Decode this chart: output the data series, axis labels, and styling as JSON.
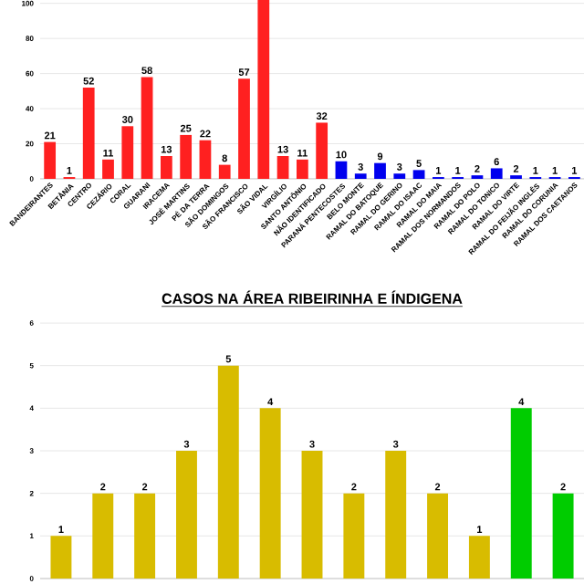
{
  "chart_data": [
    {
      "type": "bar",
      "categories": [
        "BANDEIRANTES",
        "BETÂNIA",
        "CENTRO",
        "CEZÁRIO",
        "CORAL",
        "GUARANI",
        "IRACEMA",
        "JOSÉ MARTINS",
        "PÉ DA TERRA",
        "SÃO DOMINGOS",
        "SÃO FRANCISCO",
        "SÃO VIDAL",
        "VIRGÍLIO",
        "SANTO ANTÔNIO",
        "NÃO IDENTIFICADO",
        "PARANÁ PENTECOSTES",
        "BELO MONTE",
        "RAMAL DO BATOQUE",
        "RAMAL DO GERINO",
        "RAMAL DO ISAAC",
        "RAMAL DO MAIA",
        "RAMAL DOS NORMANDOS",
        "RAMAL DO POLO",
        "RAMAL DO TONICO",
        "RAMAL DO VIRTE",
        "RAMAL DO FEIJÃO INGLÊS",
        "RAMAL DO CORUNIA",
        "RAMAL DOS CAETANOS"
      ],
      "values": [
        21,
        1,
        52,
        11,
        30,
        58,
        13,
        25,
        22,
        8,
        57,
        104,
        13,
        11,
        32,
        10,
        3,
        9,
        3,
        5,
        1,
        1,
        2,
        6,
        2,
        1,
        1,
        1
      ],
      "value_labels": [
        "21",
        "1",
        "52",
        "11",
        "30",
        "58",
        "13",
        "25",
        "22",
        "8",
        "57",
        null,
        "13",
        "11",
        "32",
        "10",
        "3",
        "9",
        "3",
        "5",
        "1",
        "1",
        "2",
        "6",
        "2",
        "1",
        "1",
        "1"
      ],
      "colors": [
        "#ff2020",
        "#ff2020",
        "#ff2020",
        "#ff2020",
        "#ff2020",
        "#ff2020",
        "#ff2020",
        "#ff2020",
        "#ff2020",
        "#ff2020",
        "#ff2020",
        "#ff2020",
        "#ff2020",
        "#ff2020",
        "#ff2020",
        "#0000ee",
        "#0000ee",
        "#0000ee",
        "#0000ee",
        "#0000ee",
        "#0000ee",
        "#0000ee",
        "#0000ee",
        "#0000ee",
        "#0000ee",
        "#0000ee",
        "#0000ee",
        "#0000ee"
      ],
      "ylim": [
        0,
        104
      ],
      "yticks": [
        0,
        20,
        40,
        60,
        80,
        100
      ],
      "grid": "y"
    },
    {
      "type": "bar",
      "title": "CASOS NA ÁREA RIBEIRINHA E ÍNDIGENA",
      "categories": [
        null,
        null,
        null,
        null,
        null,
        null,
        null,
        null,
        null,
        null,
        null,
        null,
        null
      ],
      "values": [
        1,
        2,
        2,
        3,
        5,
        4,
        3,
        2,
        3,
        2,
        1,
        4,
        2
      ],
      "colors": [
        "#d8bc00",
        "#d8bc00",
        "#d8bc00",
        "#d8bc00",
        "#d8bc00",
        "#d8bc00",
        "#d8bc00",
        "#d8bc00",
        "#d8bc00",
        "#d8bc00",
        "#d8bc00",
        "#00cc00",
        "#00cc00"
      ],
      "ylim": [
        0,
        6
      ],
      "yticks": [
        0,
        1,
        2,
        3,
        4,
        5,
        6
      ],
      "grid": "y",
      "data_labels": true,
      "tick_labels": "y"
    }
  ]
}
